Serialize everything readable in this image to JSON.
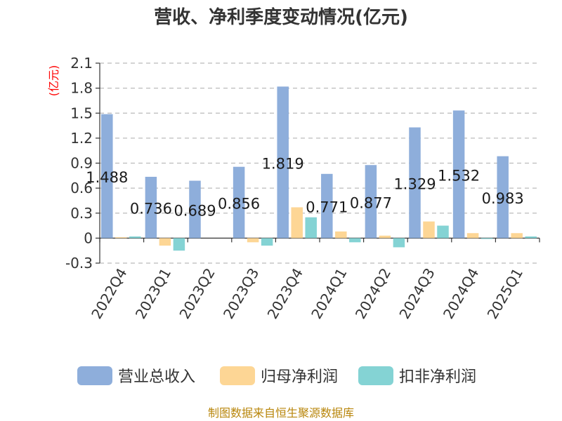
{
  "chart_data": {
    "type": "bar",
    "title": "营收、净利季度变动情况(亿元)",
    "ylabel": "(亿元)",
    "categories": [
      "2022Q4",
      "2023Q1",
      "2023Q2",
      "2023Q3",
      "2023Q4",
      "2024Q1",
      "2024Q2",
      "2024Q3",
      "2024Q4",
      "2025Q1"
    ],
    "series": [
      {
        "name": "营业总收入",
        "color": "#8eaedb",
        "values": [
          1.488,
          0.736,
          0.689,
          0.856,
          1.819,
          0.771,
          0.877,
          1.329,
          1.532,
          0.983
        ]
      },
      {
        "name": "归母净利润",
        "color": "#fdd695",
        "values": [
          0.01,
          -0.09,
          0.0,
          -0.05,
          0.37,
          0.08,
          0.03,
          0.2,
          0.06,
          0.06
        ]
      },
      {
        "name": "扣非净利润",
        "color": "#84d3d4",
        "values": [
          0.02,
          -0.15,
          0.0,
          -0.09,
          0.25,
          -0.05,
          -0.11,
          0.15,
          -0.01,
          0.02
        ]
      }
    ],
    "data_labels": [
      "1.488",
      "0.736",
      "0.689",
      "0.856",
      "1.819",
      "0.771",
      "0.877",
      "1.329",
      "1.532",
      "0.983"
    ],
    "yticks": [
      "2.1",
      "1.8",
      "1.5",
      "1.2",
      "0.9",
      "0.6",
      "0.3",
      "0",
      "-0.3"
    ],
    "ylim": [
      -0.3,
      2.1
    ],
    "grid": true,
    "legend_position": "bottom"
  },
  "source": "制图数据来自恒生聚源数据库"
}
